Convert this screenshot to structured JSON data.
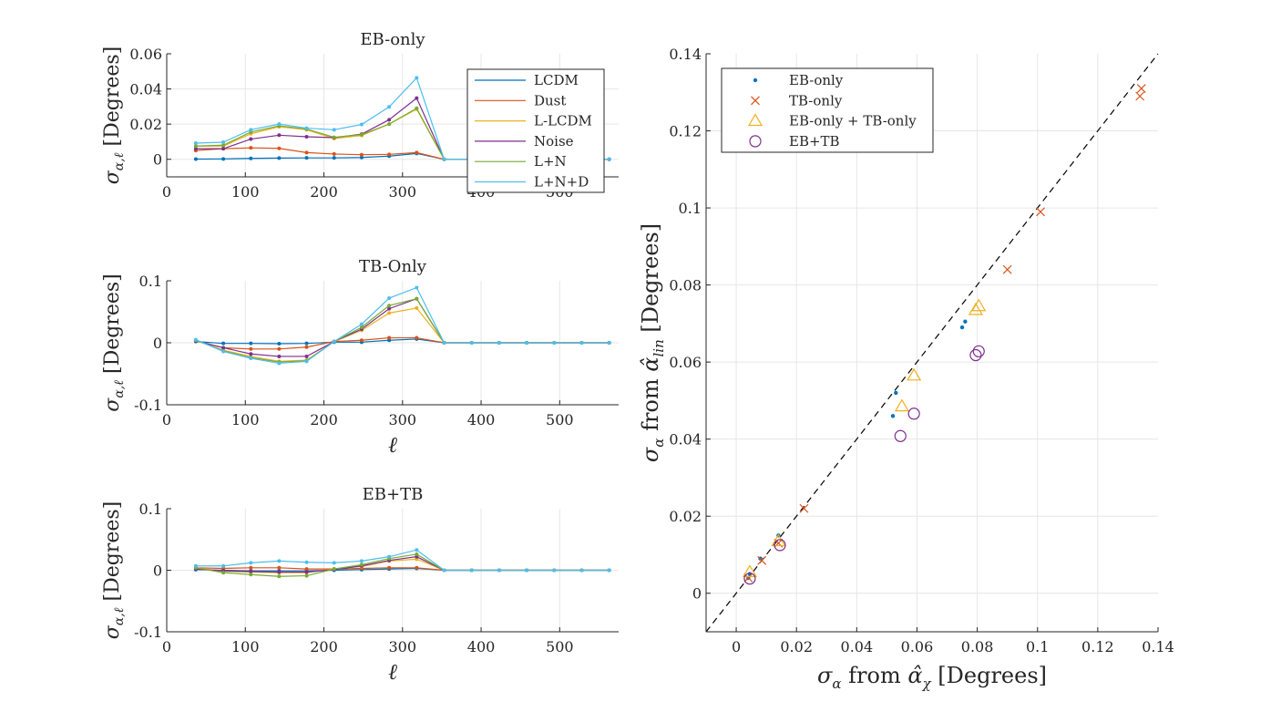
{
  "figure": {
    "colors": {
      "LCDM": "#0072bd",
      "Dust": "#d95319",
      "L-LCDM": "#edb120",
      "Noise": "#7e2f8e",
      "L+N": "#77ac30",
      "L+N+D": "#4dbeee",
      "grid": "#e6e6e6",
      "axis": "#262626"
    }
  },
  "chart_data": [
    {
      "id": "panel-eb",
      "type": "line",
      "title": "EB-only",
      "xlabel": "",
      "ylabel_main": "σ",
      "ylabel_sub": "α,ℓ",
      "ylabel_unit": " [Degrees]",
      "xlim": [
        0,
        575
      ],
      "ylim": [
        -0.01,
        0.06
      ],
      "xticks": [
        0,
        100,
        200,
        300,
        400,
        500
      ],
      "xtick_labels": [
        "0",
        "100",
        "200",
        "300",
        "400",
        "500"
      ],
      "yticks": [
        0,
        0.02,
        0.04,
        0.06
      ],
      "ytick_labels": [
        "0",
        "0.02",
        "0.04",
        "0.06"
      ],
      "legend": {
        "position": "top-right",
        "entries": [
          "LCDM",
          "Dust",
          "L-LCDM",
          "Noise",
          "L+N",
          "L+N+D"
        ]
      },
      "x": [
        37,
        72,
        107,
        143,
        178,
        213,
        248,
        283,
        318,
        353,
        388,
        423,
        458,
        493,
        528,
        563
      ],
      "series": [
        {
          "name": "LCDM",
          "values": [
            0.0001,
            0.0002,
            0.0005,
            0.0007,
            0.0008,
            0.0008,
            0.001,
            0.0018,
            0.0033,
            0,
            0,
            0,
            0,
            0,
            0,
            0
          ]
        },
        {
          "name": "Dust",
          "values": [
            0.005,
            0.006,
            0.0065,
            0.0062,
            0.0038,
            0.003,
            0.0026,
            0.0028,
            0.0038,
            0,
            0,
            0,
            0,
            0,
            0,
            0
          ]
        },
        {
          "name": "L-LCDM",
          "values": [
            0.0075,
            0.0075,
            0.0145,
            0.0185,
            0.0168,
            0.0118,
            0.0135,
            0.02,
            0.0285,
            0,
            0,
            0,
            0,
            0,
            0,
            0
          ]
        },
        {
          "name": "Noise",
          "values": [
            0.006,
            0.006,
            0.0115,
            0.0137,
            0.0128,
            0.0123,
            0.0143,
            0.0225,
            0.0348,
            0,
            0,
            0,
            0,
            0,
            0,
            0
          ]
        },
        {
          "name": "L+N",
          "values": [
            0.0075,
            0.008,
            0.0155,
            0.019,
            0.0172,
            0.0125,
            0.014,
            0.02,
            0.029,
            0,
            0,
            0,
            0,
            0,
            0,
            0
          ]
        },
        {
          "name": "L+N+D",
          "values": [
            0.0092,
            0.0097,
            0.0168,
            0.02,
            0.0177,
            0.0168,
            0.0198,
            0.0298,
            0.0463,
            0,
            0,
            0,
            0,
            0,
            0,
            0
          ]
        }
      ]
    },
    {
      "id": "panel-tb",
      "type": "line",
      "title": "TB-Only",
      "xlabel": "ℓ",
      "ylabel_main": "σ",
      "ylabel_sub": "α,ℓ",
      "ylabel_unit": " [Degrees]",
      "xlim": [
        0,
        575
      ],
      "ylim": [
        -0.1,
        0.1
      ],
      "xticks": [
        0,
        100,
        200,
        300,
        400,
        500
      ],
      "xtick_labels": [
        "0",
        "100",
        "200",
        "300",
        "400",
        "500"
      ],
      "yticks": [
        -0.1,
        0,
        0.1
      ],
      "ytick_labels": [
        "-0.1",
        "0",
        "0.1"
      ],
      "x": [
        37,
        72,
        107,
        143,
        178,
        213,
        248,
        283,
        318,
        353,
        388,
        423,
        458,
        493,
        528,
        563
      ],
      "series": [
        {
          "name": "LCDM",
          "values": [
            0.002,
            -0.001,
            -0.001,
            -0.0015,
            -0.001,
            0.001,
            0.001,
            0.004,
            0.006,
            0,
            0,
            0,
            0,
            0,
            0,
            0
          ]
        },
        {
          "name": "Dust",
          "values": [
            0.003,
            -0.008,
            -0.01,
            -0.01,
            -0.007,
            0.002,
            0.004,
            0.008,
            0.008,
            0,
            0,
            0,
            0,
            0,
            0,
            0
          ]
        },
        {
          "name": "L-LCDM",
          "values": [
            0.004,
            -0.012,
            -0.022,
            -0.03,
            -0.028,
            0.002,
            0.02,
            0.048,
            0.056,
            0,
            0,
            0,
            0,
            0,
            0,
            0
          ]
        },
        {
          "name": "Noise",
          "values": [
            0.003,
            -0.008,
            -0.018,
            -0.022,
            -0.022,
            0.002,
            0.022,
            0.055,
            0.071,
            0,
            0,
            0,
            0,
            0,
            0,
            0
          ]
        },
        {
          "name": "L+N",
          "values": [
            0.004,
            -0.013,
            -0.024,
            -0.031,
            -0.029,
            0.002,
            0.025,
            0.06,
            0.071,
            0,
            0,
            0,
            0,
            0,
            0,
            0
          ]
        },
        {
          "name": "L+N+D",
          "values": [
            0.005,
            -0.014,
            -0.025,
            -0.033,
            -0.03,
            0.002,
            0.03,
            0.072,
            0.089,
            0,
            0,
            0,
            0,
            0,
            0,
            0
          ]
        }
      ]
    },
    {
      "id": "panel-ebtb",
      "type": "line",
      "title": "EB+TB",
      "xlabel": "ℓ",
      "ylabel_main": "σ",
      "ylabel_sub": "α,ℓ",
      "ylabel_unit": " [Degrees]",
      "xlim": [
        0,
        575
      ],
      "ylim": [
        -0.1,
        0.1
      ],
      "xticks": [
        0,
        100,
        200,
        300,
        400,
        500
      ],
      "xtick_labels": [
        "0",
        "100",
        "200",
        "300",
        "400",
        "500"
      ],
      "yticks": [
        -0.1,
        0,
        0.1
      ],
      "ytick_labels": [
        "-0.1",
        "0",
        "0.1"
      ],
      "x": [
        37,
        72,
        107,
        143,
        178,
        213,
        248,
        283,
        318,
        353,
        388,
        423,
        458,
        493,
        528,
        563
      ],
      "series": [
        {
          "name": "LCDM",
          "values": [
            0.001,
            0.0,
            -0.001,
            -0.001,
            -0.001,
            0.0,
            0.001,
            0.002,
            0.003,
            0,
            0,
            0,
            0,
            0,
            0,
            0
          ]
        },
        {
          "name": "Dust",
          "values": [
            0.004,
            0.003,
            0.004,
            0.004,
            0.002,
            0.002,
            0.003,
            0.004,
            0.004,
            0,
            0,
            0,
            0,
            0,
            0,
            0
          ]
        },
        {
          "name": "L-LCDM",
          "values": [
            0.004,
            -0.002,
            -0.003,
            -0.004,
            -0.004,
            0.002,
            0.006,
            0.015,
            0.018,
            0,
            0,
            0,
            0,
            0,
            0,
            0
          ]
        },
        {
          "name": "Noise",
          "values": [
            0.002,
            -0.001,
            -0.002,
            -0.003,
            -0.003,
            0.001,
            0.007,
            0.016,
            0.022,
            0,
            0,
            0,
            0,
            0,
            0,
            0
          ]
        },
        {
          "name": "L+N",
          "values": [
            0.004,
            -0.004,
            -0.007,
            -0.01,
            -0.009,
            0.002,
            0.009,
            0.019,
            0.026,
            0,
            0,
            0,
            0,
            0,
            0,
            0
          ]
        },
        {
          "name": "L+N+D",
          "values": [
            0.007,
            0.007,
            0.012,
            0.015,
            0.013,
            0.012,
            0.015,
            0.022,
            0.033,
            0,
            0,
            0,
            0,
            0,
            0,
            0
          ]
        }
      ]
    },
    {
      "id": "panel-scatter",
      "type": "scatter",
      "title": "",
      "xlabel": "σ from α̂ [Degrees]",
      "xlabel_parts": [
        "σ",
        "α",
        " from ",
        "α̂",
        "χ",
        " [Degrees]"
      ],
      "ylabel": "σ from α̂ [Degrees]",
      "ylabel_parts": [
        "σ",
        "α",
        " from ",
        "α̂",
        "lin",
        " [Degrees]"
      ],
      "xlim": [
        -0.01,
        0.14
      ],
      "ylim": [
        -0.01,
        0.14
      ],
      "xticks": [
        0,
        0.02,
        0.04,
        0.06,
        0.08,
        0.1,
        0.12,
        0.14
      ],
      "xtick_labels": [
        "0",
        "0.02",
        "0.04",
        "0.06",
        "0.08",
        "0.1",
        "0.12",
        "0.14"
      ],
      "yticks": [
        0,
        0.02,
        0.04,
        0.06,
        0.08,
        0.1,
        0.12,
        0.14
      ],
      "ytick_labels": [
        "0",
        "0.02",
        "0.04",
        "0.06",
        "0.08",
        "0.1",
        "0.12",
        "0.14"
      ],
      "reference_line": "y = x (dashed)",
      "legend": {
        "position": "top-left",
        "entries": [
          "EB-only",
          "TB-only",
          "EB-only + TB-only",
          "EB+TB"
        ]
      },
      "series": [
        {
          "name": "EB-only",
          "marker": "dot",
          "color": "#0072bd",
          "x": [
            0.004,
            0.0045,
            0.008,
            0.014,
            0.052,
            0.053,
            0.075,
            0.076
          ],
          "y": [
            0.004,
            0.005,
            0.009,
            0.015,
            0.046,
            0.052,
            0.069,
            0.0705
          ]
        },
        {
          "name": "TB-only",
          "marker": "x",
          "color": "#d95319",
          "x": [
            0.004,
            0.0085,
            0.014,
            0.0225,
            0.09,
            0.101,
            0.134,
            0.1345
          ],
          "y": [
            0.004,
            0.0085,
            0.013,
            0.022,
            0.084,
            0.099,
            0.129,
            0.131
          ]
        },
        {
          "name": "EB-only + TB-only",
          "marker": "triangle",
          "color": "#edb120",
          "x": [
            0.0045,
            0.014,
            0.055,
            0.059,
            0.0795,
            0.0805
          ],
          "y": [
            0.0055,
            0.0135,
            0.0485,
            0.0565,
            0.0735,
            0.0745
          ]
        },
        {
          "name": "EB+TB",
          "marker": "circle",
          "color": "#7e2f8e",
          "x": [
            0.0045,
            0.0145,
            0.0545,
            0.059,
            0.0795,
            0.0805
          ],
          "y": [
            0.0038,
            0.0125,
            0.0408,
            0.0466,
            0.0618,
            0.0628
          ]
        }
      ]
    }
  ]
}
